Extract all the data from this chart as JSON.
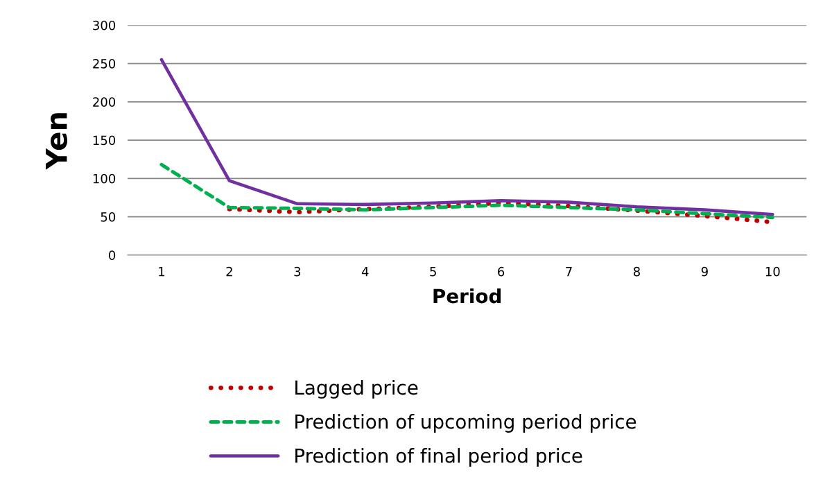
{
  "chart_data": {
    "type": "line",
    "xlabel": "Period",
    "ylabel": "Yen",
    "categories": [
      "1",
      "2",
      "3",
      "4",
      "5",
      "6",
      "7",
      "8",
      "9",
      "10"
    ],
    "ylim": [
      0,
      300
    ],
    "yticks": [
      0,
      50,
      100,
      150,
      200,
      250,
      300
    ],
    "grid": "y",
    "legend": "bottom",
    "series": [
      {
        "name": "Lagged price",
        "color": "#c00000",
        "line_style": "dotted",
        "values": [
          null,
          60,
          56,
          60,
          63,
          68,
          64,
          58,
          51,
          43
        ]
      },
      {
        "name": "Prediction of upcoming period price",
        "color": "#00b050",
        "line_style": "dashed",
        "values": [
          118,
          62,
          61,
          59,
          62,
          65,
          62,
          59,
          54,
          49
        ]
      },
      {
        "name": "Prediction of final period price",
        "color": "#7030a0",
        "line_style": "solid",
        "values": [
          255,
          97,
          67,
          66,
          68,
          71,
          69,
          63,
          59,
          53
        ]
      }
    ]
  }
}
